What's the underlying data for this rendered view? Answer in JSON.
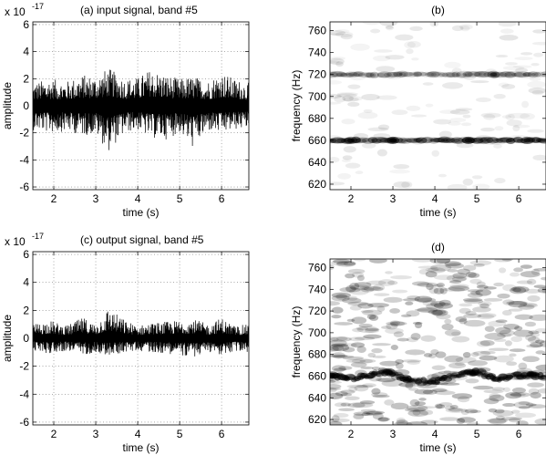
{
  "chart_data": [
    {
      "type": "line",
      "title": "(a) input signal, band #5",
      "xlabel": "time (s)",
      "ylabel": "amplitude",
      "y_scale_label": "x 10",
      "y_scale_exp": "-17",
      "xlim": [
        1.5,
        6.65
      ],
      "ylim": [
        -6.2,
        6.2
      ],
      "xticks": [
        2,
        3,
        4,
        5,
        6
      ],
      "yticks": [
        -6,
        -4,
        -2,
        0,
        2,
        4,
        6
      ],
      "grid": true,
      "series": [
        {
          "x": [
            1.5,
            1.9,
            2.3,
            2.7,
            3.0,
            3.3,
            3.7,
            4.0,
            4.3,
            4.7,
            5.0,
            5.3,
            5.7,
            6.0,
            6.3,
            6.65
          ],
          "y_upper": [
            1.7,
            2.0,
            1.8,
            2.3,
            2.2,
            2.8,
            2.0,
            2.1,
            2.7,
            2.3,
            2.0,
            2.2,
            1.9,
            2.5,
            2.0,
            1.7
          ],
          "y_lower": [
            -1.8,
            -2.0,
            -1.9,
            -2.2,
            -2.1,
            -3.4,
            -2.0,
            -1.8,
            -2.4,
            -2.5,
            -2.0,
            -3.1,
            -1.9,
            -2.1,
            -1.8,
            -1.7
          ],
          "color": "#000000"
        }
      ]
    },
    {
      "type": "heatmap",
      "title": "(b)",
      "xlabel": "time (s)",
      "ylabel": "frequency (Hz)",
      "xlim": [
        1.5,
        6.65
      ],
      "ylim": [
        615,
        768
      ],
      "xticks": [
        2,
        3,
        4,
        5,
        6
      ],
      "yticks": [
        620,
        640,
        660,
        680,
        700,
        720,
        740,
        760
      ],
      "bands": [
        {
          "freq": 720,
          "intensity": 0.35,
          "width_hz": 2.5
        },
        {
          "freq": 660,
          "intensity": 0.65,
          "width_hz": 3
        }
      ],
      "hotspots": [
        {
          "t": 3.0,
          "freq": 660,
          "intensity": 1.0
        },
        {
          "t": 2.0,
          "freq": 660,
          "intensity": 0.7
        },
        {
          "t": 4.8,
          "freq": 660,
          "intensity": 0.85
        },
        {
          "t": 6.2,
          "freq": 660,
          "intensity": 0.75
        },
        {
          "t": 5.4,
          "freq": 720,
          "intensity": 0.55
        }
      ]
    },
    {
      "type": "line",
      "title": "(c) output signal, band #5",
      "xlabel": "time (s)",
      "ylabel": "amplitude",
      "y_scale_label": "x 10",
      "y_scale_exp": "-17",
      "xlim": [
        1.5,
        6.65
      ],
      "ylim": [
        -6.2,
        6.2
      ],
      "xticks": [
        2,
        3,
        4,
        5,
        6
      ],
      "yticks": [
        -6,
        -4,
        -2,
        0,
        2,
        4,
        6
      ],
      "grid": true,
      "series": [
        {
          "x": [
            1.5,
            1.9,
            2.3,
            2.7,
            3.0,
            3.3,
            3.7,
            4.0,
            4.3,
            4.7,
            5.0,
            5.3,
            5.7,
            6.0,
            6.3,
            6.65
          ],
          "y_upper": [
            1.0,
            1.3,
            0.9,
            1.5,
            1.0,
            2.2,
            1.3,
            0.9,
            1.1,
            1.2,
            1.3,
            1.4,
            1.0,
            1.5,
            0.9,
            1.0
          ],
          "y_lower": [
            -0.9,
            -1.1,
            -0.9,
            -1.2,
            -1.0,
            -1.3,
            -1.0,
            -0.9,
            -1.0,
            -1.1,
            -1.2,
            -1.4,
            -1.0,
            -1.2,
            -1.0,
            -1.0
          ],
          "color": "#000000"
        }
      ]
    },
    {
      "type": "heatmap",
      "title": "(d)",
      "xlabel": "time (s)",
      "ylabel": "frequency (Hz)",
      "xlim": [
        1.5,
        6.65
      ],
      "ylim": [
        615,
        768
      ],
      "xticks": [
        2,
        3,
        4,
        5,
        6
      ],
      "yticks": [
        620,
        640,
        660,
        680,
        700,
        720,
        740,
        760
      ],
      "ridge": [
        {
          "t": 1.5,
          "freq": 660
        },
        {
          "t": 2.1,
          "freq": 658
        },
        {
          "t": 2.8,
          "freq": 664
        },
        {
          "t": 3.3,
          "freq": 658
        },
        {
          "t": 3.8,
          "freq": 654
        },
        {
          "t": 4.5,
          "freq": 660
        },
        {
          "t": 5.0,
          "freq": 664
        },
        {
          "t": 5.5,
          "freq": 657
        },
        {
          "t": 6.0,
          "freq": 661
        },
        {
          "t": 6.65,
          "freq": 660
        }
      ],
      "hotspots": [
        {
          "t": 1.55,
          "freq": 661,
          "intensity": 0.8
        },
        {
          "t": 2.9,
          "freq": 664,
          "intensity": 0.9
        },
        {
          "t": 3.3,
          "freq": 658,
          "intensity": 0.75
        },
        {
          "t": 4.9,
          "freq": 663,
          "intensity": 0.9
        },
        {
          "t": 6.35,
          "freq": 661,
          "intensity": 0.7
        }
      ]
    }
  ]
}
